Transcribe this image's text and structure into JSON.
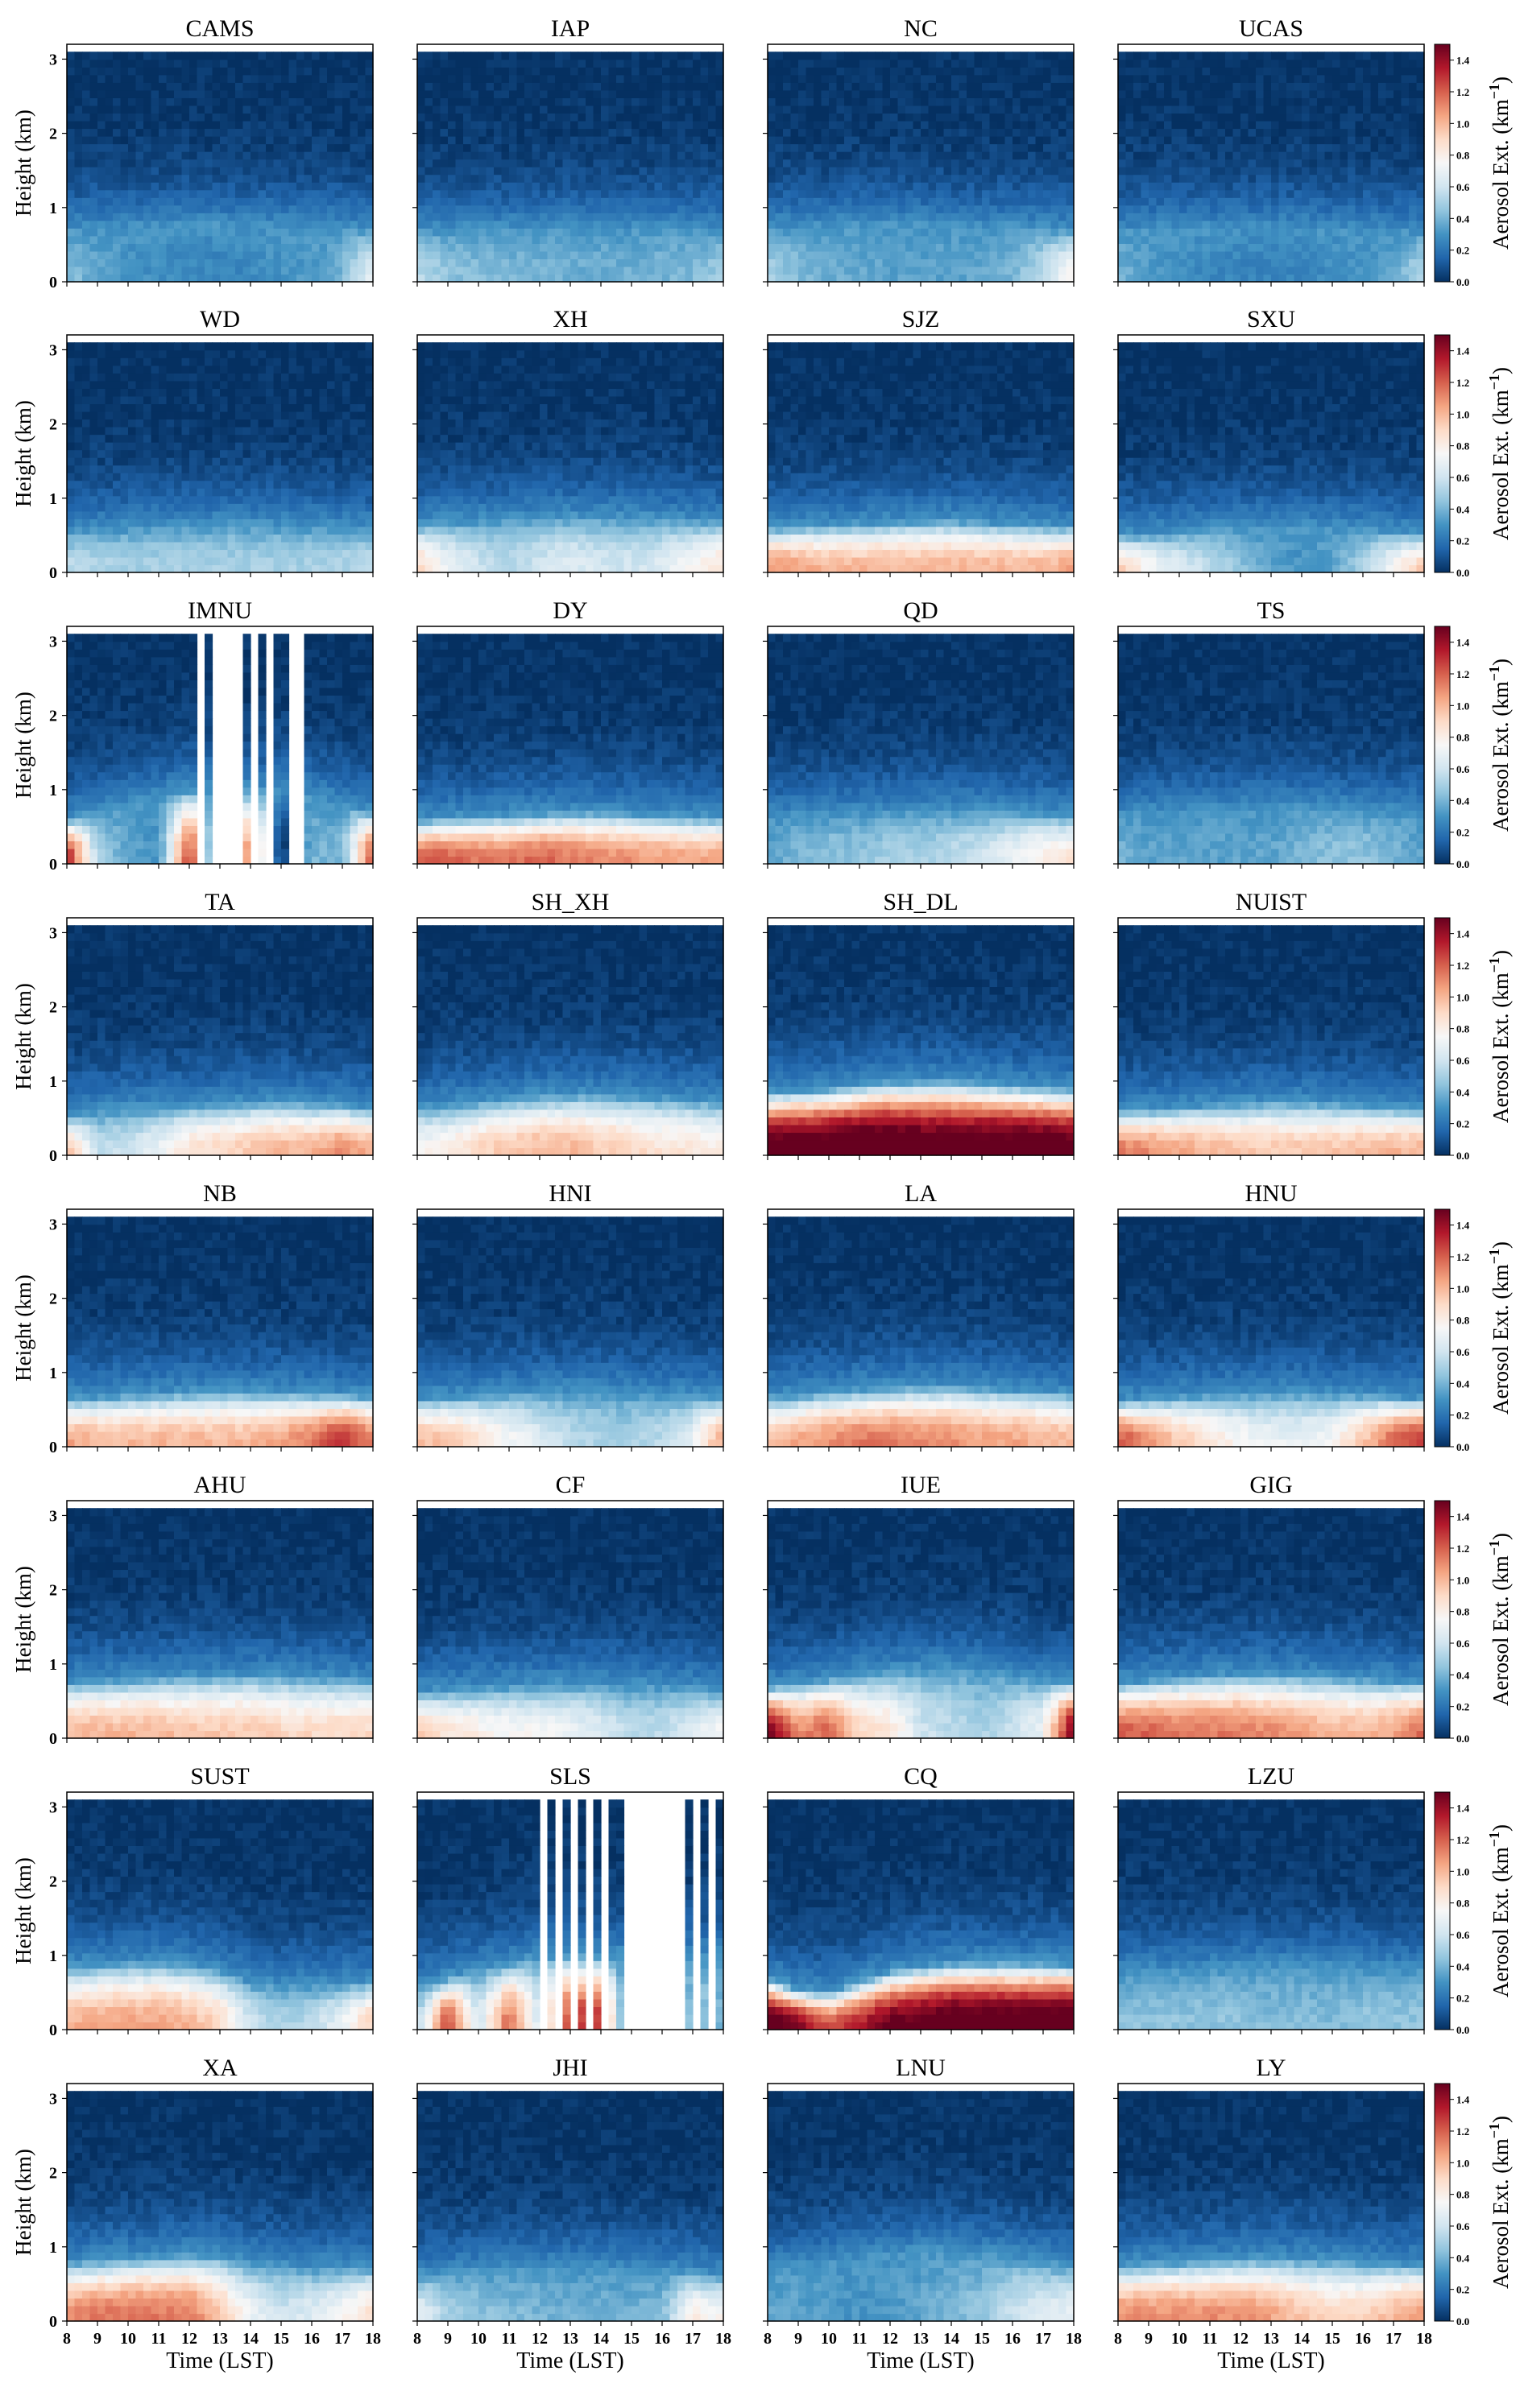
{
  "chart_data": {
    "type": "heatmap",
    "panel_layout": "8 rows x 4 columns",
    "x_axis": {
      "label": "Time (LST)",
      "range": [
        8,
        18
      ],
      "ticks": [
        "8",
        "9",
        "10",
        "11",
        "12",
        "13",
        "14",
        "15",
        "16",
        "17",
        "18"
      ]
    },
    "y_axis": {
      "label": "Height (km)",
      "range": [
        0,
        3.1
      ],
      "ticks": [
        "0",
        "1",
        "2",
        "3"
      ]
    },
    "colorbar": {
      "label_main": "Aerosol Ext. (km",
      "label_sup": "−1",
      "label_close": ")",
      "range": [
        0.0,
        1.5
      ],
      "ticks": [
        "0.0",
        "0.2",
        "0.4",
        "0.6",
        "0.8",
        "1.0",
        "1.2",
        "1.4"
      ],
      "colormap": "RdBu_r",
      "colors": [
        "#053061",
        "#2166ac",
        "#4393c3",
        "#92c5de",
        "#d1e5f0",
        "#f7f7f7",
        "#fddbc7",
        "#f4a582",
        "#d6604d",
        "#b2182b",
        "#67001f"
      ]
    },
    "panels": [
      {
        "title": "CAMS",
        "surface_ext": [
          0.45,
          0.35,
          0.3,
          0.28,
          0.26,
          0.25,
          0.27,
          0.3,
          0.32,
          0.4,
          0.7
        ],
        "layer_top_km": [
          0.7,
          0.72,
          0.74,
          0.75,
          0.76,
          0.77,
          0.76,
          0.75,
          0.74,
          0.72,
          0.7
        ],
        "missing_hours": []
      },
      {
        "title": "IAP",
        "surface_ext": [
          0.55,
          0.45,
          0.42,
          0.4,
          0.4,
          0.38,
          0.38,
          0.38,
          0.4,
          0.42,
          0.48
        ],
        "layer_top_km": [
          0.7,
          0.7,
          0.72,
          0.72,
          0.74,
          0.74,
          0.74,
          0.72,
          0.72,
          0.7,
          0.7
        ],
        "missing_hours": []
      },
      {
        "title": "NC",
        "surface_ext": [
          0.5,
          0.42,
          0.38,
          0.36,
          0.35,
          0.34,
          0.35,
          0.36,
          0.4,
          0.55,
          0.8
        ],
        "layer_top_km": [
          0.72,
          0.74,
          0.76,
          0.78,
          0.78,
          0.78,
          0.76,
          0.75,
          0.74,
          0.72,
          0.7
        ],
        "missing_hours": []
      },
      {
        "title": "UCAS",
        "surface_ext": [
          0.4,
          0.32,
          0.28,
          0.26,
          0.25,
          0.25,
          0.26,
          0.28,
          0.3,
          0.35,
          0.55
        ],
        "layer_top_km": [
          0.68,
          0.7,
          0.72,
          0.72,
          0.72,
          0.72,
          0.72,
          0.7,
          0.7,
          0.68,
          0.66
        ],
        "missing_hours": []
      },
      {
        "title": "WD",
        "surface_ext": [
          0.55,
          0.52,
          0.5,
          0.5,
          0.5,
          0.5,
          0.5,
          0.5,
          0.5,
          0.52,
          0.55
        ],
        "layer_top_km": [
          0.55,
          0.57,
          0.6,
          0.62,
          0.64,
          0.65,
          0.65,
          0.64,
          0.62,
          0.6,
          0.58
        ],
        "missing_hours": []
      },
      {
        "title": "XH",
        "surface_ext": [
          0.9,
          0.7,
          0.6,
          0.55,
          0.6,
          0.65,
          0.62,
          0.6,
          0.65,
          0.75,
          0.85
        ],
        "layer_top_km": [
          0.65,
          0.67,
          0.7,
          0.72,
          0.74,
          0.75,
          0.75,
          0.74,
          0.72,
          0.7,
          0.68
        ],
        "missing_hours": []
      },
      {
        "title": "SJZ",
        "surface_ext": [
          1.1,
          1.05,
          1.0,
          1.0,
          1.0,
          1.0,
          1.0,
          1.0,
          1.0,
          1.0,
          1.05
        ],
        "layer_top_km": [
          0.6,
          0.62,
          0.64,
          0.66,
          0.68,
          0.7,
          0.7,
          0.68,
          0.66,
          0.64,
          0.62
        ],
        "missing_hours": []
      },
      {
        "title": "SXU",
        "surface_ext": [
          0.95,
          0.75,
          0.65,
          0.55,
          0.45,
          0.35,
          0.3,
          0.35,
          0.5,
          0.75,
          0.95
        ],
        "layer_top_km": [
          0.5,
          0.52,
          0.55,
          0.58,
          0.6,
          0.62,
          0.62,
          0.6,
          0.58,
          0.55,
          0.52
        ],
        "missing_hours": []
      },
      {
        "title": "IMNU",
        "surface_ext": [
          1.4,
          0.5,
          0.35,
          0.3,
          1.3,
          0.0,
          1.2,
          0.0,
          0.4,
          0.4,
          1.3
        ],
        "layer_top_km": [
          0.6,
          0.7,
          0.8,
          0.9,
          1.0,
          1.0,
          1.0,
          1.0,
          0.9,
          0.8,
          0.7
        ],
        "missing_hours": [
          [
            12.2,
            12.4
          ],
          [
            12.8,
            13.8
          ],
          [
            14.05,
            14.3
          ],
          [
            14.55,
            14.75
          ],
          [
            15.3,
            15.8
          ]
        ]
      },
      {
        "title": "DY",
        "surface_ext": [
          1.2,
          1.2,
          1.15,
          1.15,
          1.2,
          1.15,
          1.1,
          1.1,
          1.05,
          1.05,
          1.05
        ],
        "layer_top_km": [
          0.6,
          0.62,
          0.64,
          0.66,
          0.68,
          0.7,
          0.7,
          0.68,
          0.66,
          0.64,
          0.62
        ],
        "missing_hours": []
      },
      {
        "title": "QD",
        "surface_ext": [
          0.35,
          0.4,
          0.45,
          0.45,
          0.5,
          0.5,
          0.55,
          0.6,
          0.7,
          0.8,
          0.85
        ],
        "layer_top_km": [
          0.62,
          0.64,
          0.66,
          0.68,
          0.7,
          0.72,
          0.72,
          0.72,
          0.7,
          0.68,
          0.66
        ],
        "missing_hours": []
      },
      {
        "title": "TS",
        "surface_ext": [
          0.4,
          0.35,
          0.35,
          0.35,
          0.35,
          0.35,
          0.4,
          0.45,
          0.45,
          0.4,
          0.35
        ],
        "layer_top_km": [
          0.65,
          0.68,
          0.7,
          0.72,
          0.74,
          0.76,
          0.76,
          0.74,
          0.72,
          0.7,
          0.68
        ],
        "missing_hours": []
      },
      {
        "title": "TA",
        "surface_ext": [
          1.0,
          0.55,
          0.6,
          0.7,
          0.85,
          0.9,
          0.95,
          1.0,
          1.0,
          1.1,
          1.0
        ],
        "layer_top_km": [
          0.55,
          0.58,
          0.62,
          0.65,
          0.68,
          0.7,
          0.72,
          0.72,
          0.7,
          0.68,
          0.65
        ],
        "missing_hours": []
      },
      {
        "title": "SH_XH",
        "surface_ext": [
          0.75,
          0.8,
          0.9,
          0.95,
          1.0,
          1.0,
          0.95,
          0.9,
          0.85,
          0.85,
          0.8
        ],
        "layer_top_km": [
          0.65,
          0.68,
          0.72,
          0.76,
          0.8,
          0.82,
          0.82,
          0.8,
          0.78,
          0.75,
          0.72
        ],
        "missing_hours": []
      },
      {
        "title": "SH_DL",
        "surface_ext": [
          1.6,
          1.6,
          1.6,
          1.65,
          1.65,
          1.6,
          1.6,
          1.6,
          1.6,
          1.6,
          1.55
        ],
        "layer_top_km": [
          0.85,
          0.88,
          0.9,
          0.95,
          1.0,
          1.0,
          1.0,
          0.98,
          0.95,
          0.92,
          0.9
        ],
        "missing_hours": []
      },
      {
        "title": "NUIST",
        "surface_ext": [
          1.15,
          1.1,
          1.05,
          1.0,
          0.95,
          0.95,
          0.95,
          0.95,
          1.0,
          1.0,
          1.0
        ],
        "layer_top_km": [
          0.6,
          0.62,
          0.65,
          0.68,
          0.7,
          0.72,
          0.72,
          0.7,
          0.68,
          0.65,
          0.62
        ],
        "missing_hours": []
      },
      {
        "title": "NB",
        "surface_ext": [
          1.05,
          1.0,
          1.0,
          1.0,
          1.0,
          1.0,
          1.0,
          1.05,
          1.15,
          1.35,
          1.1
        ],
        "layer_top_km": [
          0.65,
          0.68,
          0.7,
          0.72,
          0.74,
          0.75,
          0.75,
          0.74,
          0.72,
          0.7,
          0.68
        ],
        "missing_hours": []
      },
      {
        "title": "HNI",
        "surface_ext": [
          1.0,
          0.95,
          0.85,
          0.75,
          0.65,
          0.55,
          0.5,
          0.5,
          0.55,
          0.7,
          1.05
        ],
        "layer_top_km": [
          0.65,
          0.68,
          0.7,
          0.72,
          0.74,
          0.75,
          0.75,
          0.72,
          0.7,
          0.68,
          0.66
        ],
        "missing_hours": []
      },
      {
        "title": "LA",
        "surface_ext": [
          0.95,
          1.05,
          1.1,
          1.15,
          1.15,
          1.1,
          1.1,
          1.05,
          1.05,
          1.0,
          1.0
        ],
        "layer_top_km": [
          0.68,
          0.7,
          0.74,
          0.78,
          0.8,
          0.82,
          0.82,
          0.8,
          0.78,
          0.75,
          0.72
        ],
        "missing_hours": []
      },
      {
        "title": "HNU",
        "surface_ext": [
          1.25,
          1.1,
          0.95,
          0.85,
          0.75,
          0.7,
          0.7,
          0.75,
          0.95,
          1.2,
          1.3
        ],
        "layer_top_km": [
          0.62,
          0.65,
          0.68,
          0.7,
          0.72,
          0.74,
          0.74,
          0.72,
          0.7,
          0.68,
          0.65
        ],
        "missing_hours": []
      },
      {
        "title": "AHU",
        "surface_ext": [
          1.0,
          1.0,
          1.0,
          1.0,
          0.95,
          0.95,
          0.95,
          0.9,
          0.9,
          0.9,
          0.9
        ],
        "layer_top_km": [
          0.75,
          0.78,
          0.8,
          0.82,
          0.84,
          0.85,
          0.85,
          0.84,
          0.82,
          0.8,
          0.78
        ],
        "missing_hours": []
      },
      {
        "title": "CF",
        "surface_ext": [
          0.95,
          0.85,
          0.8,
          0.75,
          0.75,
          0.7,
          0.65,
          0.55,
          0.55,
          0.65,
          0.75
        ],
        "layer_top_km": [
          0.62,
          0.65,
          0.68,
          0.7,
          0.72,
          0.74,
          0.74,
          0.72,
          0.7,
          0.68,
          0.65
        ],
        "missing_hours": []
      },
      {
        "title": "IUE",
        "surface_ext": [
          1.5,
          1.1,
          1.2,
          0.9,
          0.85,
          0.6,
          0.55,
          0.5,
          0.6,
          0.7,
          1.5
        ],
        "layer_top_km": [
          0.7,
          0.75,
          0.8,
          0.85,
          0.9,
          0.95,
          0.95,
          0.9,
          0.85,
          0.8,
          0.75
        ],
        "missing_hours": []
      },
      {
        "title": "GIG",
        "surface_ext": [
          1.2,
          1.2,
          1.15,
          1.15,
          1.15,
          1.1,
          1.05,
          1.0,
          1.0,
          1.05,
          1.2
        ],
        "layer_top_km": [
          0.75,
          0.78,
          0.82,
          0.85,
          0.86,
          0.86,
          0.85,
          0.82,
          0.8,
          0.78,
          0.75
        ],
        "missing_hours": []
      },
      {
        "title": "SUST",
        "surface_ext": [
          1.0,
          1.05,
          1.05,
          1.05,
          1.0,
          0.9,
          0.6,
          0.5,
          0.55,
          0.7,
          0.95
        ],
        "layer_top_km": [
          0.85,
          0.88,
          0.9,
          0.9,
          0.88,
          0.8,
          0.65,
          0.6,
          0.6,
          0.62,
          0.65
        ],
        "missing_hours": []
      },
      {
        "title": "SLS",
        "surface_ext": [
          0.5,
          1.3,
          0.6,
          1.2,
          0.6,
          1.3,
          1.3,
          0.0,
          0.0,
          0.5,
          0.4
        ],
        "layer_top_km": [
          0.6,
          0.7,
          0.8,
          0.9,
          1.0,
          1.0,
          1.0,
          1.0,
          1.0,
          1.0,
          1.0
        ],
        "missing_hours": [
          [
            12.05,
            12.25
          ],
          [
            12.55,
            12.75
          ],
          [
            13.05,
            13.2
          ],
          [
            13.45,
            13.65
          ],
          [
            14.1,
            14.3
          ],
          [
            14.8,
            16.7
          ],
          [
            16.95,
            17.2
          ],
          [
            17.45,
            17.7
          ]
        ]
      },
      {
        "title": "CQ",
        "surface_ext": [
          1.6,
          1.45,
          1.2,
          1.35,
          1.5,
          1.55,
          1.6,
          1.6,
          1.6,
          1.6,
          1.6
        ],
        "layer_top_km": [
          0.7,
          0.55,
          0.5,
          0.65,
          0.8,
          0.85,
          0.9,
          0.9,
          0.9,
          0.9,
          0.88
        ],
        "missing_hours": []
      },
      {
        "title": "LZU",
        "surface_ext": [
          0.45,
          0.45,
          0.45,
          0.45,
          0.45,
          0.42,
          0.42,
          0.42,
          0.45,
          0.45,
          0.45
        ],
        "layer_top_km": [
          0.75,
          0.78,
          0.8,
          0.82,
          0.84,
          0.85,
          0.85,
          0.84,
          0.82,
          0.8,
          0.78
        ],
        "missing_hours": []
      },
      {
        "title": "XA",
        "surface_ext": [
          1.1,
          1.15,
          1.15,
          1.15,
          1.15,
          0.95,
          0.7,
          0.6,
          0.65,
          0.75,
          0.9
        ],
        "layer_top_km": [
          0.8,
          0.82,
          0.85,
          0.88,
          0.9,
          0.88,
          0.8,
          0.75,
          0.72,
          0.72,
          0.72
        ],
        "missing_hours": []
      },
      {
        "title": "JHI",
        "surface_ext": [
          0.7,
          0.5,
          0.45,
          0.42,
          0.4,
          0.38,
          0.38,
          0.38,
          0.42,
          0.8,
          0.75
        ],
        "layer_top_km": [
          0.62,
          0.65,
          0.68,
          0.7,
          0.72,
          0.72,
          0.72,
          0.7,
          0.68,
          0.65,
          0.62
        ],
        "missing_hours": []
      },
      {
        "title": "LNU",
        "surface_ext": [
          0.35,
          0.35,
          0.32,
          0.3,
          0.32,
          0.35,
          0.4,
          0.45,
          0.6,
          0.65,
          0.7
        ],
        "layer_top_km": [
          0.7,
          0.75,
          0.8,
          0.85,
          0.9,
          0.95,
          0.95,
          0.9,
          0.85,
          0.8,
          0.75
        ],
        "missing_hours": []
      },
      {
        "title": "LY",
        "surface_ext": [
          1.1,
          1.1,
          1.1,
          1.1,
          1.1,
          1.05,
          0.95,
          0.9,
          0.9,
          1.0,
          1.1
        ],
        "layer_top_km": [
          0.75,
          0.78,
          0.8,
          0.82,
          0.84,
          0.85,
          0.84,
          0.82,
          0.8,
          0.78,
          0.75
        ],
        "missing_hours": []
      }
    ]
  }
}
